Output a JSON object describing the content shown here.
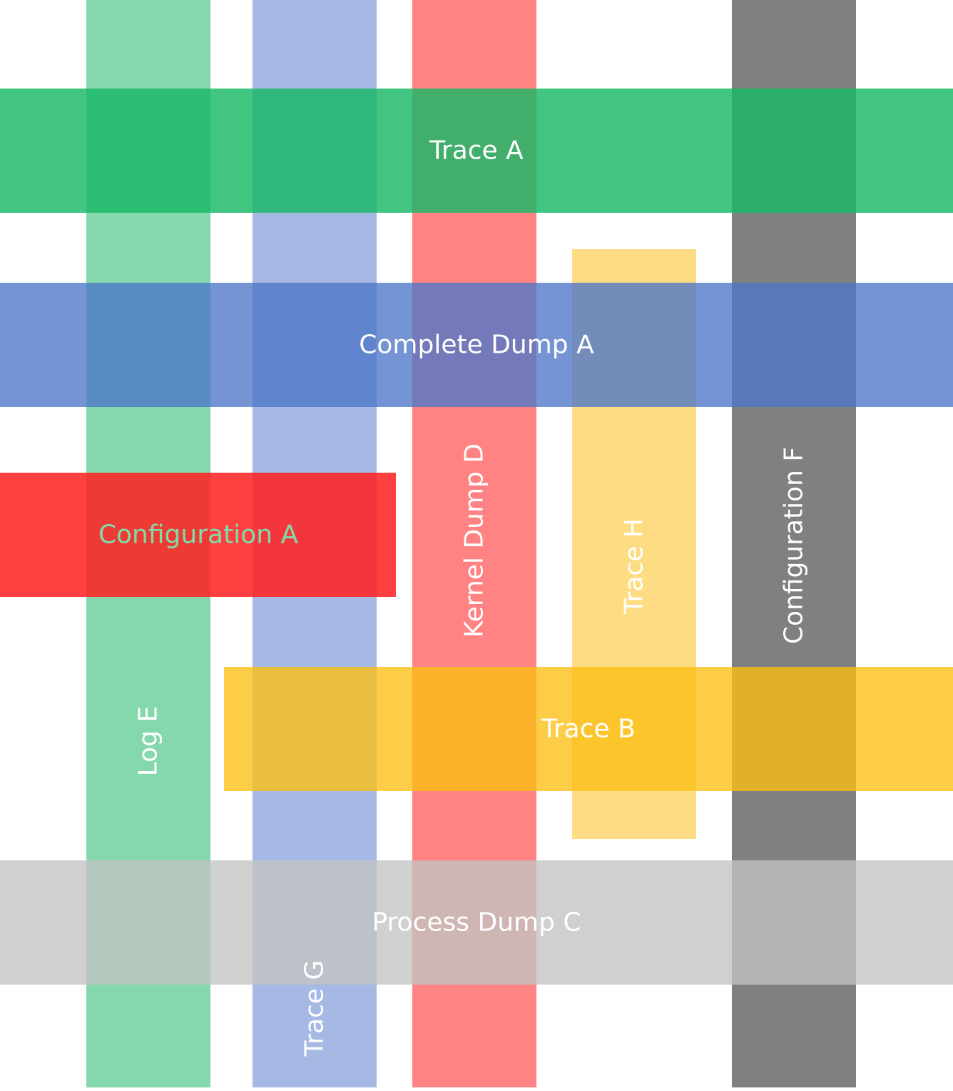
{
  "diagram": {
    "vertical_bands": [
      {
        "id": "log-e",
        "label": "Log E",
        "color": "#56c98b",
        "label_color": "#ffffff"
      },
      {
        "id": "trace-g",
        "label": "Trace G",
        "color": "#7f9bd8",
        "label_color": "#ffffff"
      },
      {
        "id": "kernel-dump-d",
        "label": "Kernel Dump D",
        "color": "#ff5a5a",
        "label_color": "#ffffff"
      },
      {
        "id": "trace-h",
        "label": "Trace H",
        "color": "#fdd260",
        "label_color": "#ffffff"
      },
      {
        "id": "configuration-f",
        "label": "Configuration F",
        "color": "#808080",
        "label_color": "#ffffff"
      }
    ],
    "horizontal_bands": [
      {
        "id": "trace-a",
        "label": "Trace A",
        "color": "#17b865",
        "label_color": "#ffffff"
      },
      {
        "id": "complete-dump-a",
        "label": "Complete Dump A",
        "color": "#4d76c8",
        "label_color": "#ffffff"
      },
      {
        "id": "configuration-a",
        "label": "Configuration A",
        "color": "#ff1f1f",
        "label_color": "#7fdca9"
      },
      {
        "id": "trace-b",
        "label": "Trace B",
        "color": "#fdbf13",
        "label_color": "#ffffff"
      },
      {
        "id": "process-dump-c",
        "label": "Process Dump C",
        "color": "#c3c3c3",
        "label_color": "#ffffff"
      }
    ]
  }
}
